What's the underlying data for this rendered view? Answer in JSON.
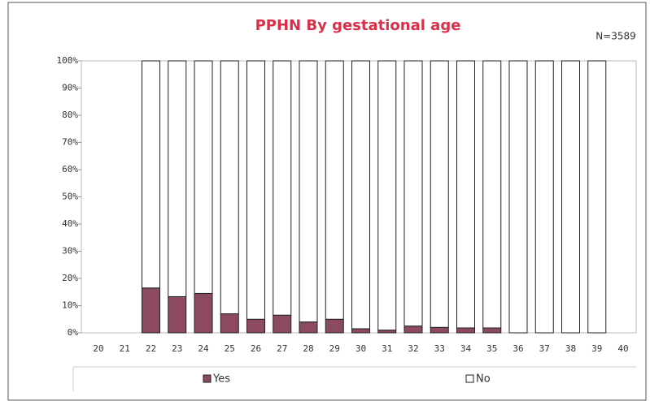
{
  "chart_data": {
    "type": "bar",
    "stacked": true,
    "title": "PPHN By gestational age",
    "annotation": "N=3589",
    "categories": [
      "20",
      "21",
      "22",
      "23",
      "24",
      "25",
      "26",
      "27",
      "28",
      "29",
      "30",
      "31",
      "32",
      "33",
      "34",
      "35",
      "36",
      "37",
      "38",
      "39",
      "40"
    ],
    "series": [
      {
        "name": "Yes",
        "color": "#8b4a5e",
        "values": [
          null,
          null,
          16.5,
          13.3,
          14.5,
          7,
          5,
          6.5,
          4,
          5,
          1.5,
          1,
          2.5,
          2,
          1.8,
          1.8,
          0,
          0,
          0,
          0,
          null
        ]
      },
      {
        "name": "No",
        "color": "#ffffff",
        "values": [
          null,
          null,
          83.5,
          86.7,
          85.5,
          93,
          95,
          93.5,
          96,
          95,
          98.5,
          99,
          97.5,
          98,
          98.2,
          98.2,
          100,
          100,
          100,
          100,
          null
        ]
      }
    ],
    "ylim": [
      0,
      100
    ],
    "yticks": [
      {
        "value": 0,
        "label": "0%"
      },
      {
        "value": 10,
        "label": "10%"
      },
      {
        "value": 20,
        "label": "20%"
      },
      {
        "value": 30,
        "label": "30%"
      },
      {
        "value": 40,
        "label": "40%"
      },
      {
        "value": 50,
        "label": "50%"
      },
      {
        "value": 60,
        "label": "60%"
      },
      {
        "value": 70,
        "label": "70%"
      },
      {
        "value": 80,
        "label": "80%"
      },
      {
        "value": 90,
        "label": "90%"
      },
      {
        "value": 100,
        "label": "100%"
      }
    ],
    "legend": "bottom"
  }
}
